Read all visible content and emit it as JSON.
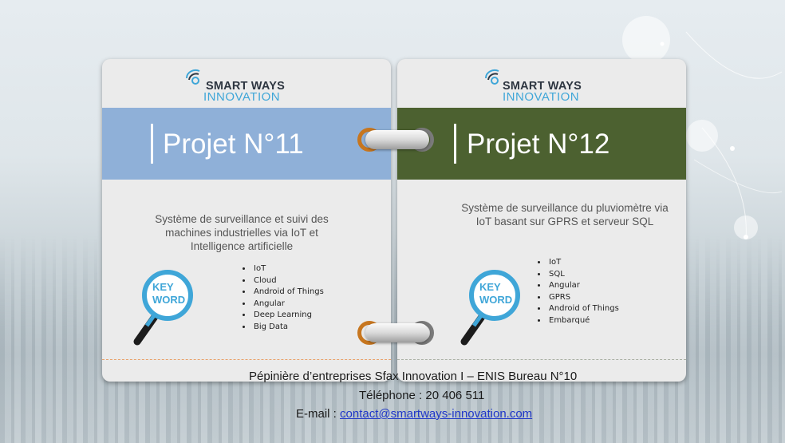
{
  "brand": {
    "line1": "SMART WAYS",
    "line2": "INNOVATION",
    "colors": {
      "dark": "#2d3540",
      "light": "#3fa6d8"
    }
  },
  "cards": [
    {
      "title": "Projet N°11",
      "band_color": "#8fb0d8",
      "description": [
        "Système de surveillance et suivi des",
        "machines industrielles via IoT et",
        "Intelligence artificielle"
      ],
      "keyword_icon": "magnifier-keyword-icon",
      "keyword_lines": [
        "KEY",
        "WORD"
      ],
      "tags": [
        "IoT",
        "Cloud",
        "Android of Things",
        "Angular",
        "Deep Learning",
        "Big Data"
      ]
    },
    {
      "title": "Projet N°12",
      "band_color": "#4c6130",
      "description": [
        "Système de surveillance du pluviomètre via",
        "IoT basant sur GPRS et serveur SQL"
      ],
      "keyword_icon": "magnifier-keyword-icon",
      "keyword_lines": [
        "KEY",
        "WORD"
      ],
      "tags": [
        "IoT",
        "SQL",
        "Angular",
        "GPRS",
        "Android of Things",
        "Embarqué"
      ]
    }
  ],
  "footer": {
    "address": "Pépinière d’entreprises Sfax Innovation I – ENIS Bureau N°10",
    "phone": "Téléphone : 20 406 511",
    "email_label": "E-mail : ",
    "email": "contact@smartways-innovation.com"
  }
}
